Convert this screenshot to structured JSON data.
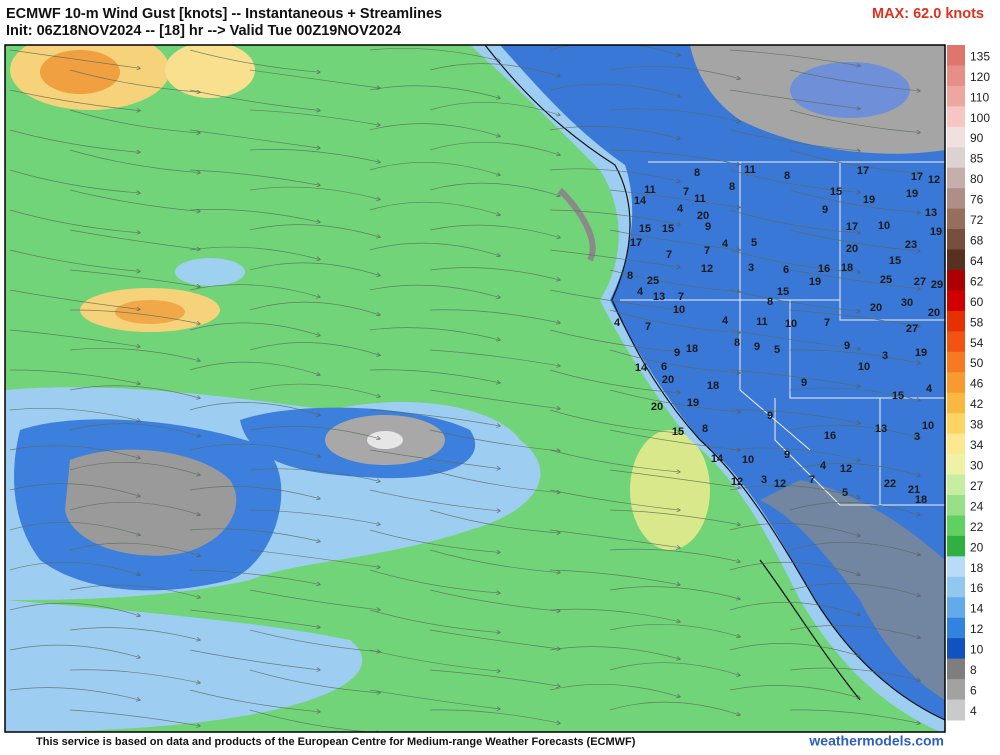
{
  "header": {
    "title": "ECMWF 10-m Wind Gust [knots] -- Instantaneous + Streamlines",
    "subtitle": "Init: 06Z18NOV2024 -- [18] hr --> Valid Tue 00Z19NOV2024",
    "max_label": "MAX: 62.0 knots"
  },
  "colorbar": {
    "levels": [
      135,
      120,
      110,
      100,
      90,
      85,
      80,
      76,
      72,
      68,
      64,
      62,
      60,
      58,
      54,
      50,
      46,
      42,
      38,
      34,
      30,
      27,
      24,
      22,
      20,
      18,
      16,
      14,
      12,
      10,
      8,
      6,
      4
    ],
    "colors": [
      "#de766e",
      "#e68f88",
      "#eea6a1",
      "#f6c6c3",
      "#f0e0e0",
      "#ddd2d2",
      "#c6aeaa",
      "#ae8e86",
      "#956e5e",
      "#784e3e",
      "#583020",
      "#ad0000",
      "#d00000",
      "#e63000",
      "#f05410",
      "#f57a20",
      "#f89a30",
      "#f9b840",
      "#fbd462",
      "#fde892",
      "#eef2a4",
      "#c6eea0",
      "#98e088",
      "#60d060",
      "#30b040",
      "#b8dcf8",
      "#90c8f0",
      "#62aaea",
      "#3282e0",
      "#1252c0",
      "#7e7e7e",
      "#a2a2a2",
      "#cacaca"
    ]
  },
  "station_labels": [
    8,
    8,
    11,
    8,
    17,
    17,
    12,
    19,
    15,
    19,
    9,
    13,
    11,
    7,
    14,
    11,
    4,
    20,
    9,
    15,
    15,
    17,
    7,
    7,
    4,
    5,
    17,
    10,
    20,
    23,
    19,
    15,
    16,
    18,
    27,
    25,
    29,
    12,
    3,
    6,
    19,
    8,
    25,
    4,
    13,
    7,
    10,
    15,
    8,
    4,
    11,
    10,
    7,
    20,
    30,
    20,
    27,
    4,
    7,
    9,
    18,
    8,
    9,
    5,
    9,
    3,
    10,
    19,
    14,
    6,
    20,
    9,
    18,
    4,
    15,
    20,
    19,
    9,
    13,
    10,
    3,
    16,
    15,
    8,
    14,
    10,
    9,
    4,
    12,
    7,
    12,
    3,
    12,
    22,
    21,
    18,
    5
  ],
  "footer": {
    "note": "This service is based on data and products of the European Centre for Medium-range Weather Forecasts (ECMWF)",
    "site": "weathermodels.com"
  }
}
